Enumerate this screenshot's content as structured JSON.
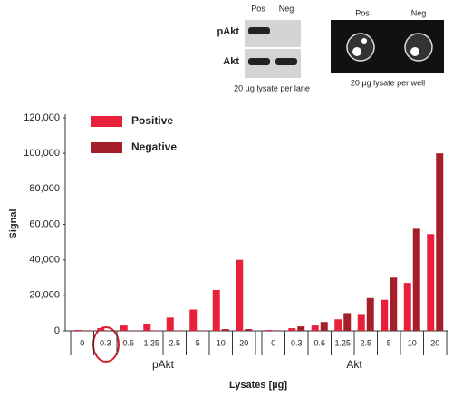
{
  "insets": {
    "blot": {
      "lanes": [
        "Pos",
        "Neg"
      ],
      "rows": [
        "pAkt",
        "Akt"
      ],
      "caption": "20 µg lysate per lane"
    },
    "wells": {
      "lanes": [
        "Pos",
        "Neg"
      ],
      "caption": "20 µg lysate per well"
    }
  },
  "chart_data": {
    "type": "grouped-bar",
    "y_label": "Signal",
    "x_label": "Lysates [µg]",
    "ylim": [
      0,
      120000
    ],
    "yticks": [
      0,
      {
        "value": 20000,
        "label": "20,000"
      },
      {
        "value": 40000,
        "label": "40,000"
      },
      {
        "value": 60000,
        "label": "60,000"
      },
      {
        "value": 80000,
        "label": "80,000"
      },
      {
        "value": 100000,
        "label": "100,000"
      },
      {
        "value": 120000,
        "label": "120,000"
      }
    ],
    "series": [
      {
        "name": "Positive",
        "color": "#e8203a"
      },
      {
        "name": "Negative",
        "color": "#a51f2b"
      }
    ],
    "groups": [
      {
        "name": "pAkt",
        "categories": [
          "0",
          "0.3",
          "0.6",
          "1.25",
          "2.5",
          "5",
          "10",
          "20"
        ],
        "values": [
          [
            500,
            1500,
            3000,
            4000,
            7500,
            12000,
            23000,
            40000
          ],
          [
            300,
            300,
            300,
            300,
            300,
            300,
            1000,
            1000
          ]
        ]
      },
      {
        "name": "Akt",
        "categories": [
          "0",
          "0.3",
          "0.6",
          "1.25",
          "2.5",
          "5",
          "10",
          "20"
        ],
        "values": [
          [
            500,
            1500,
            3000,
            6500,
            9500,
            17500,
            27000,
            54500
          ],
          [
            300,
            2500,
            5000,
            10000,
            18500,
            30000,
            57500,
            100000
          ]
        ]
      }
    ]
  }
}
